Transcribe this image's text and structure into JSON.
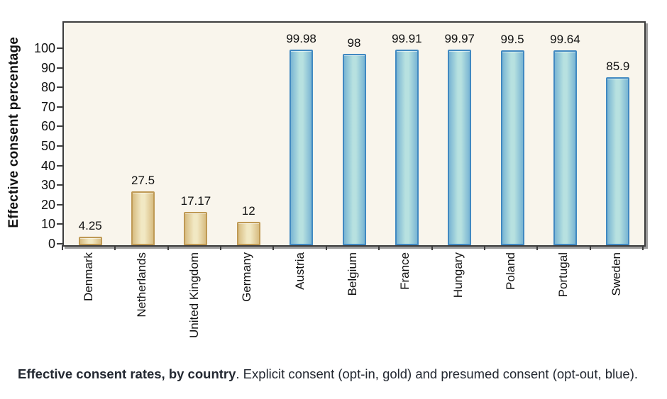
{
  "figure": {
    "caption_bold": "Effective consent rates, by country",
    "caption_rest": ". Explicit consent (opt-in, gold) and presumed consent (opt-out, blue)."
  },
  "chart_data": {
    "type": "bar",
    "title": "",
    "xlabel": "",
    "ylabel": "Effective consent percentage",
    "ylim": [
      0,
      100
    ],
    "yticks": [
      0,
      10,
      20,
      30,
      40,
      50,
      60,
      70,
      80,
      90,
      100
    ],
    "grid": false,
    "legend_position": "none (groups explained in caption)",
    "categories": [
      "Denmark",
      "Netherlands",
      "United Kingdom",
      "Germany",
      "Austria",
      "Belgium",
      "France",
      "Hungary",
      "Poland",
      "Portugal",
      "Sweden"
    ],
    "values": [
      4.25,
      27.5,
      17.17,
      12,
      99.98,
      98,
      99.91,
      99.97,
      99.5,
      99.64,
      85.9
    ],
    "value_labels": [
      "4.25",
      "27.5",
      "17.17",
      "12",
      "99.98",
      "98",
      "99.91",
      "99.97",
      "99.5",
      "99.64",
      "85.9"
    ],
    "bar_groups": [
      "explicit",
      "explicit",
      "explicit",
      "explicit",
      "presumed",
      "presumed",
      "presumed",
      "presumed",
      "presumed",
      "presumed",
      "presumed"
    ],
    "groups": {
      "explicit": {
        "name": "Explicit consent (opt-in, gold)",
        "fill_center": "#f1e8c3",
        "fill_edge": "#d8bd82",
        "border": "#bf9a55"
      },
      "presumed": {
        "name": "Presumed consent (opt-out, blue)",
        "fill_center": "#b7e1e0",
        "fill_edge": "#79b5d3",
        "border": "#4189c1"
      }
    },
    "plot_bg": "#f9f5ec",
    "frame_color": "#3d3d3d"
  }
}
